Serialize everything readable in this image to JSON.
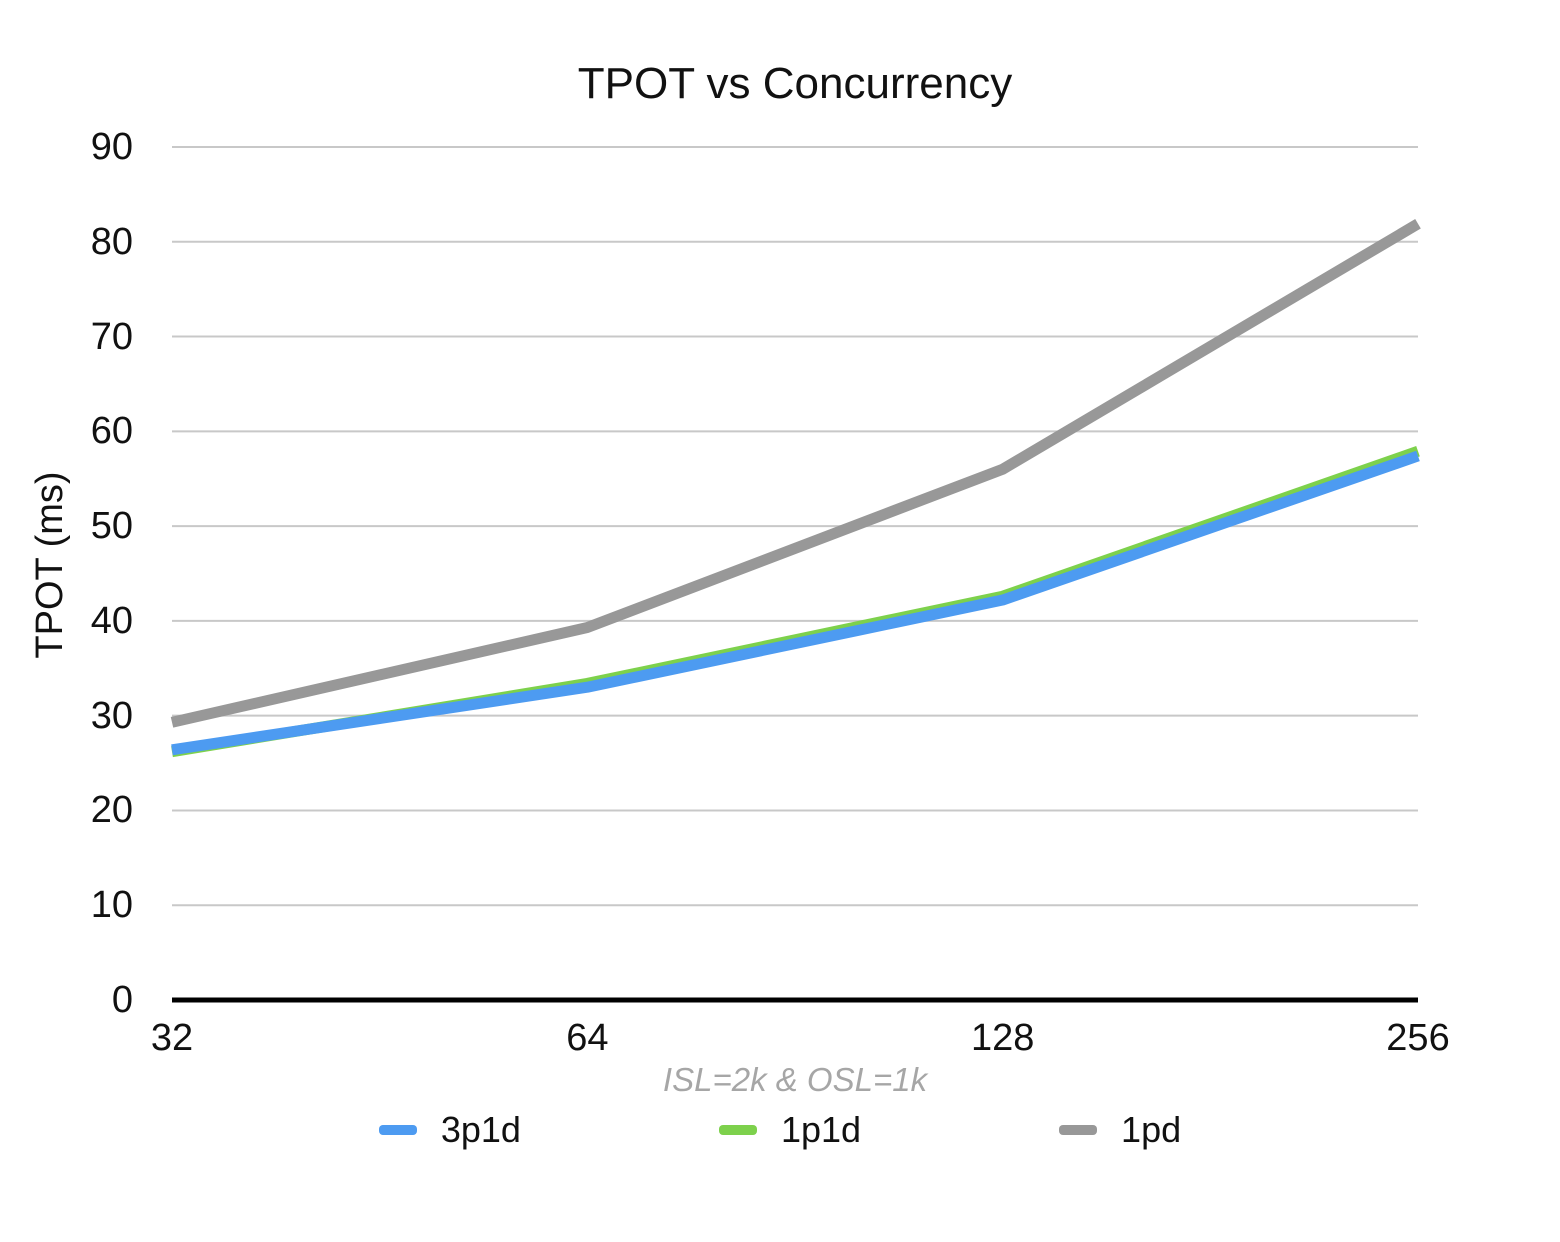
{
  "chart_data": {
    "type": "line",
    "title": "TPOT vs Concurrency",
    "ylabel": "TPOT (ms)",
    "xlabel": "ISL=2k & OSL=1k",
    "categories": [
      "32",
      "64",
      "128",
      "256"
    ],
    "series": [
      {
        "name": "3p1d",
        "color": "#4d9bf1",
        "values": [
          26.4,
          33.0,
          42.2,
          57.4
        ]
      },
      {
        "name": "1p1d",
        "color": "#7dd14c",
        "values": [
          26.2,
          33.4,
          42.6,
          57.9
        ]
      },
      {
        "name": "1pd",
        "color": "#989898",
        "values": [
          29.3,
          39.3,
          56.0,
          81.9
        ]
      }
    ],
    "draw_order": [
      "1p1d",
      "3p1d",
      "1pd"
    ],
    "ylim": [
      0,
      90
    ],
    "yticks": [
      0,
      10,
      20,
      30,
      40,
      50,
      60,
      70,
      80,
      90
    ],
    "grid": true,
    "legend_position": "bottom",
    "colors": {
      "gridline": "#c8c8c8",
      "axis_line": "#000000",
      "tick_text": "#111111",
      "subtitle_text": "#a6a6a6",
      "background": "#ffffff"
    }
  }
}
